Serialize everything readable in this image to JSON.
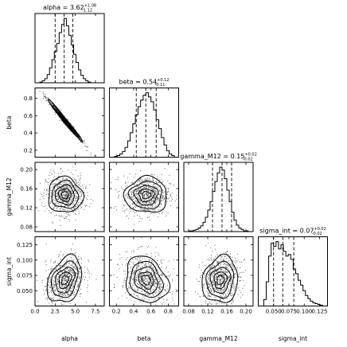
{
  "chart_data": {
    "type": "corner",
    "parameters": [
      "alpha",
      "beta",
      "gamma_M12",
      "sigma_int"
    ],
    "titles": [
      {
        "param": "alpha",
        "median": "3.62",
        "plus": "+1.08",
        "minus": "-1.12"
      },
      {
        "param": "beta",
        "median": "0.54",
        "plus": "+0.12",
        "minus": "-0.11"
      },
      {
        "param": "gamma_M12",
        "median": "0.15",
        "plus": "+0.02",
        "minus": "-0.02"
      },
      {
        "param": "sigma_int",
        "median": "0.07",
        "plus": "+0.02",
        "minus": "-0.02"
      }
    ],
    "axes": {
      "alpha": {
        "range": [
          0.0,
          8.6
        ],
        "ticks": [
          "0.0",
          "2.5",
          "5.0",
          "7.5"
        ],
        "tick_values": [
          0.0,
          2.5,
          5.0,
          7.5
        ]
      },
      "beta": {
        "range": [
          0.12,
          0.92
        ],
        "ticks": [
          "0.2",
          "0.4",
          "0.6",
          "0.8"
        ],
        "tick_values": [
          0.2,
          0.4,
          0.6,
          0.8
        ]
      },
      "gamma_M12": {
        "range": [
          0.07,
          0.215
        ],
        "ticks": [
          "0.08",
          "0.12",
          "0.16",
          "0.20"
        ],
        "tick_values": [
          0.08,
          0.12,
          0.16,
          0.2
        ]
      },
      "sigma_int": {
        "range": [
          0.025,
          0.138
        ],
        "ticks": [
          "0.050",
          "0.075",
          "0.100",
          "0.125"
        ],
        "tick_values": [
          0.05,
          0.075,
          0.1,
          0.125
        ]
      }
    },
    "marginals": [
      {
        "param": "alpha",
        "quantiles": [
          2.5,
          3.62,
          4.7
        ],
        "bin_edges": [
          0.6,
          0.9,
          1.2,
          1.5,
          1.8,
          2.1,
          2.4,
          2.7,
          3.0,
          3.3,
          3.6,
          3.9,
          4.2,
          4.5,
          4.8,
          5.1,
          5.4,
          5.7,
          6.0,
          6.3,
          6.6,
          6.9
        ],
        "counts": [
          1,
          3,
          6,
          12,
          22,
          34,
          46,
          58,
          74,
          86,
          95,
          84,
          70,
          56,
          42,
          30,
          19,
          11,
          6,
          3,
          1
        ]
      },
      {
        "param": "beta",
        "quantiles": [
          0.43,
          0.54,
          0.66
        ],
        "bin_edges": [
          0.18,
          0.21,
          0.24,
          0.27,
          0.3,
          0.33,
          0.36,
          0.39,
          0.42,
          0.45,
          0.48,
          0.51,
          0.54,
          0.57,
          0.6,
          0.63,
          0.66,
          0.69,
          0.72,
          0.75,
          0.78,
          0.81,
          0.84,
          0.87
        ],
        "counts": [
          1,
          2,
          4,
          7,
          12,
          20,
          30,
          41,
          52,
          62,
          70,
          76,
          79,
          74,
          68,
          58,
          46,
          35,
          24,
          15,
          8,
          4,
          2
        ]
      },
      {
        "param": "gamma_M12",
        "quantiles": [
          0.13,
          0.15,
          0.17
        ],
        "bin_edges": [
          0.08,
          0.085,
          0.09,
          0.095,
          0.1,
          0.105,
          0.11,
          0.115,
          0.12,
          0.125,
          0.13,
          0.135,
          0.14,
          0.145,
          0.15,
          0.155,
          0.16,
          0.165,
          0.17,
          0.175,
          0.18,
          0.185,
          0.19,
          0.195,
          0.2,
          0.205
        ],
        "counts": [
          1,
          1,
          2,
          3,
          5,
          8,
          13,
          20,
          30,
          42,
          56,
          70,
          82,
          90,
          86,
          74,
          58,
          42,
          27,
          16,
          9,
          5,
          3,
          1,
          1
        ]
      },
      {
        "param": "sigma_int",
        "quantiles": [
          0.05,
          0.065,
          0.083
        ],
        "bin_edges": [
          0.034,
          0.038,
          0.042,
          0.046,
          0.05,
          0.054,
          0.058,
          0.062,
          0.066,
          0.07,
          0.074,
          0.078,
          0.082,
          0.086,
          0.09,
          0.094,
          0.098,
          0.102,
          0.106,
          0.11,
          0.114,
          0.118,
          0.122,
          0.126,
          0.13
        ],
        "counts": [
          8,
          30,
          62,
          78,
          74,
          80,
          71,
          76,
          68,
          62,
          64,
          58,
          46,
          40,
          32,
          26,
          19,
          13,
          9,
          6,
          4,
          3,
          2,
          1
        ]
      }
    ],
    "correlations": [
      {
        "x": "alpha",
        "y": "beta",
        "rho": -0.99
      },
      {
        "x": "alpha",
        "y": "gamma_M12",
        "rho": -0.05
      },
      {
        "x": "beta",
        "y": "gamma_M12",
        "rho": 0.0
      },
      {
        "x": "alpha",
        "y": "sigma_int",
        "rho": 0.3
      },
      {
        "x": "beta",
        "y": "sigma_int",
        "rho": -0.2
      },
      {
        "x": "gamma_M12",
        "y": "sigma_int",
        "rho": 0.1
      }
    ],
    "grid": false,
    "legend": "none"
  }
}
